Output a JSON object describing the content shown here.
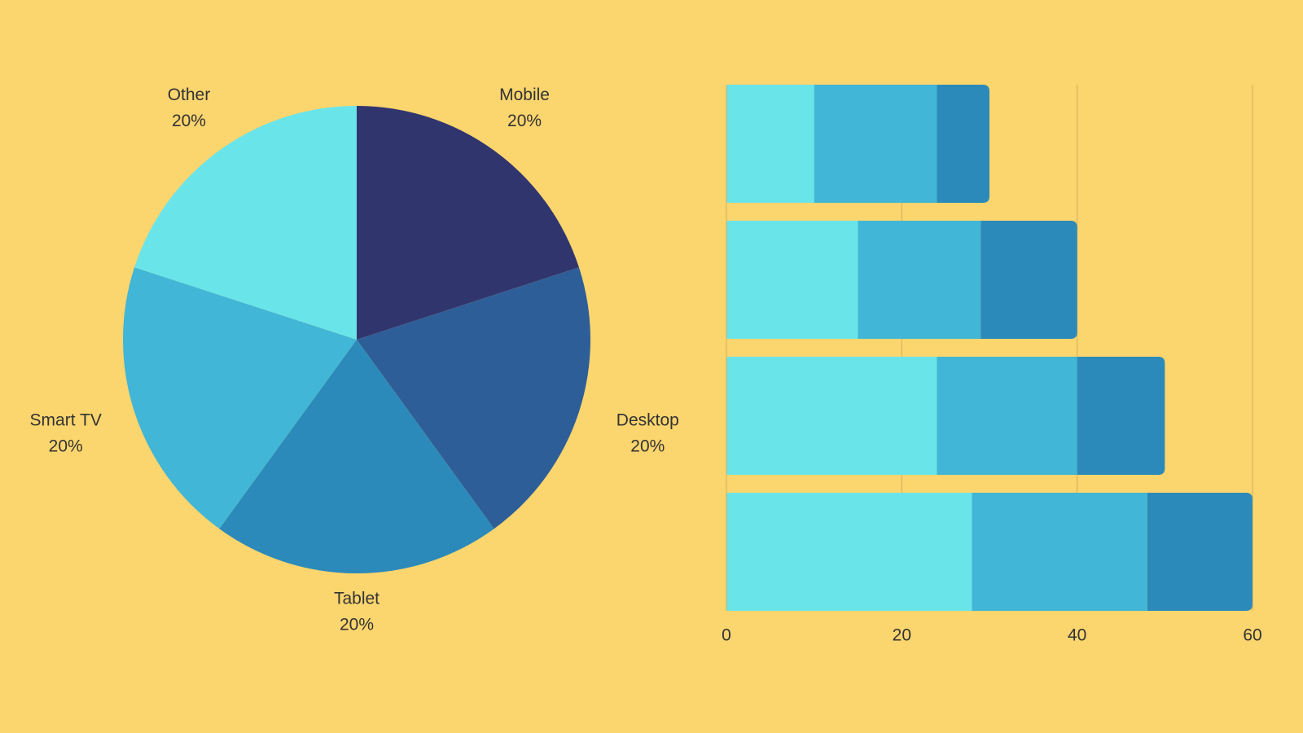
{
  "chart_data": [
    {
      "type": "pie",
      "categories": [
        "Mobile",
        "Desktop",
        "Tablet",
        "Smart TV",
        "Other"
      ],
      "values": [
        20,
        20,
        20,
        20,
        20
      ],
      "value_labels": [
        "20%",
        "20%",
        "20%",
        "20%",
        "20%"
      ],
      "colors": [
        "#31356e",
        "#2e5e98",
        "#2c8aba",
        "#41b6d6",
        "#69e5ea"
      ]
    },
    {
      "type": "stacked-barh",
      "categories": [
        null,
        null,
        null,
        null
      ],
      "series": [
        {
          "color": "#69e5ea",
          "values": [
            10,
            15,
            24,
            28
          ]
        },
        {
          "color": "#41b6d6",
          "values": [
            14,
            14,
            16,
            20
          ]
        },
        {
          "color": "#2c8aba",
          "values": [
            6,
            11,
            10,
            12
          ]
        }
      ],
      "xlim": [
        0,
        60
      ],
      "xticks": [
        0,
        20,
        40,
        60
      ],
      "grid": true
    }
  ]
}
